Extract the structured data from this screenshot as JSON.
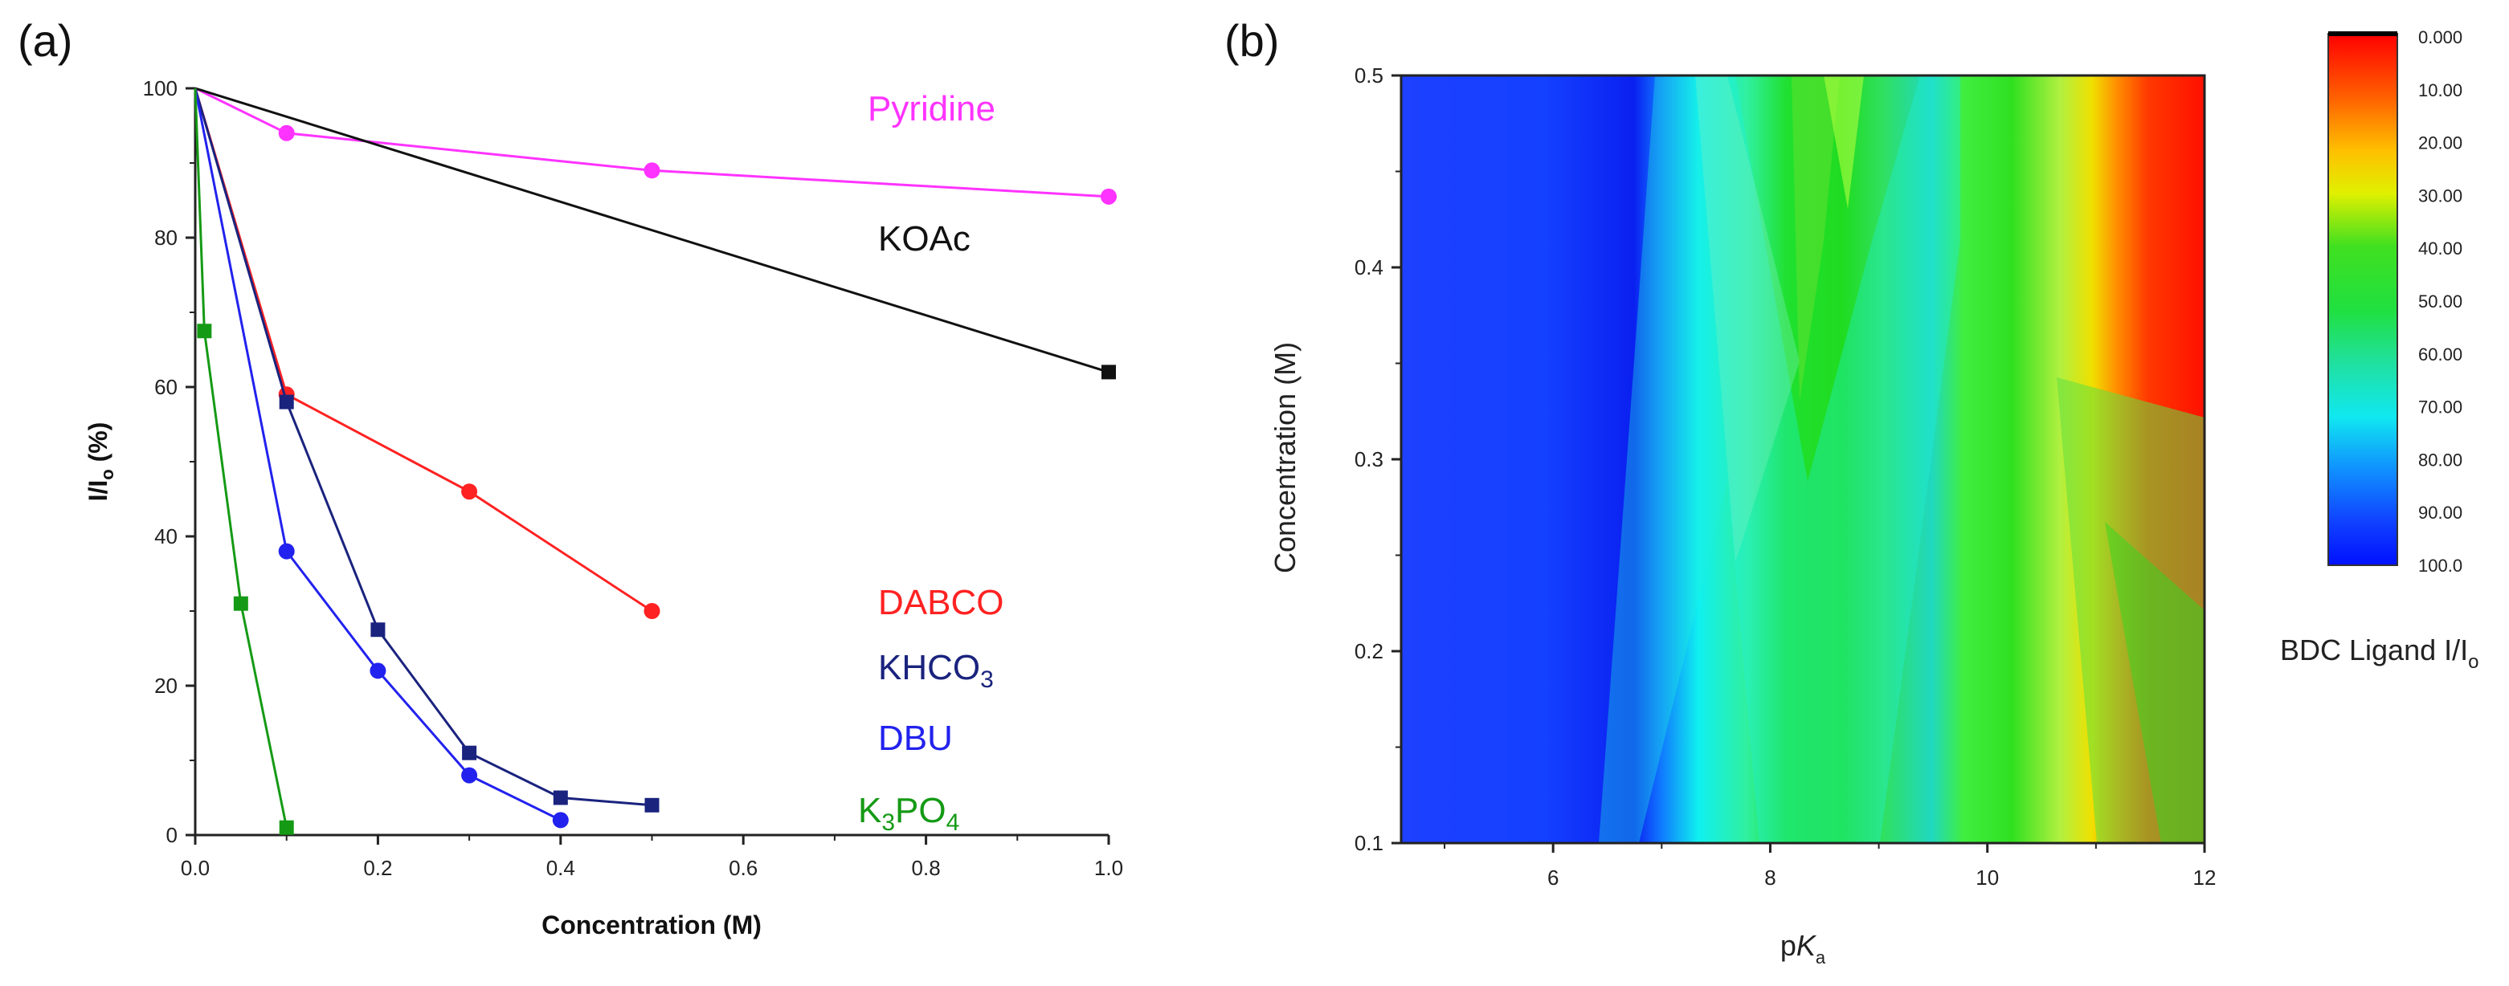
{
  "panel_a_label": "(a)",
  "panel_b_label": "(b)",
  "chart_data": [
    {
      "type": "line",
      "panel": "(a)",
      "xlabel": "Concentration (M)",
      "ylabel": "I/I",
      "ylabel_sub": "o",
      "ylabel_suffix": " (%)",
      "xlim": [
        0,
        1.0
      ],
      "ylim": [
        0,
        100
      ],
      "xticks": [
        "0.0",
        "0.2",
        "0.4",
        "0.6",
        "0.8",
        "1.0"
      ],
      "yticks": [
        "0",
        "20",
        "40",
        "60",
        "80",
        "100"
      ],
      "series": [
        {
          "name": "Pyridine",
          "label": "Pyridine",
          "color": "#ff33ff",
          "marker": "circle",
          "x": [
            0,
            0.1,
            0.5,
            1.0
          ],
          "y": [
            100,
            94,
            89,
            85.5
          ]
        },
        {
          "name": "KOAc",
          "label": "KOAc",
          "color": "#111111",
          "marker": "square",
          "x": [
            0,
            1.0
          ],
          "y": [
            100,
            62
          ]
        },
        {
          "name": "DABCO",
          "label": "DABCO",
          "color": "#ff2222",
          "marker": "circle",
          "x": [
            0,
            0.1,
            0.3,
            0.5
          ],
          "y": [
            100,
            59,
            46,
            30
          ]
        },
        {
          "name": "KHCO3",
          "label": "KHCO",
          "label_sub": "3",
          "color": "#1a237e",
          "marker": "square",
          "x": [
            0,
            0.1,
            0.2,
            0.3,
            0.4,
            0.5
          ],
          "y": [
            100,
            58,
            27.5,
            11,
            5,
            4
          ]
        },
        {
          "name": "DBU",
          "label": "DBU",
          "color": "#2222ee",
          "marker": "circle",
          "x": [
            0,
            0.1,
            0.2,
            0.3,
            0.4
          ],
          "y": [
            100,
            38,
            22,
            8,
            2
          ]
        },
        {
          "name": "K3PO4",
          "label": "K",
          "label_sub": "3",
          "label_mid": "PO",
          "label_sub2": "4",
          "color": "#159a15",
          "marker": "square",
          "x": [
            0,
            0.01,
            0.05,
            0.1
          ],
          "y": [
            100,
            67.5,
            31,
            1
          ]
        }
      ]
    },
    {
      "type": "heatmap",
      "panel": "(b)",
      "xlabel": "p",
      "xlabel_italic": "K",
      "xlabel_sub": "a",
      "ylabel": "Concentration (M)",
      "xlim": [
        4.6,
        12
      ],
      "ylim": [
        0.1,
        0.5
      ],
      "xticks": [
        "6",
        "8",
        "10",
        "12"
      ],
      "yticks": [
        "0.1",
        "0.2",
        "0.3",
        "0.4",
        "0.5"
      ],
      "value_description": "BDC Ligand I/Io (%), approximate contour by pKa",
      "colorbar": {
        "title": "BDC Ligand I/I",
        "title_sub": "o",
        "labels": [
          "0.000",
          "10.00",
          "20.00",
          "30.00",
          "40.00",
          "50.00",
          "60.00",
          "70.00",
          "80.00",
          "90.00",
          "100.0"
        ],
        "range": [
          0,
          100
        ]
      }
    }
  ]
}
